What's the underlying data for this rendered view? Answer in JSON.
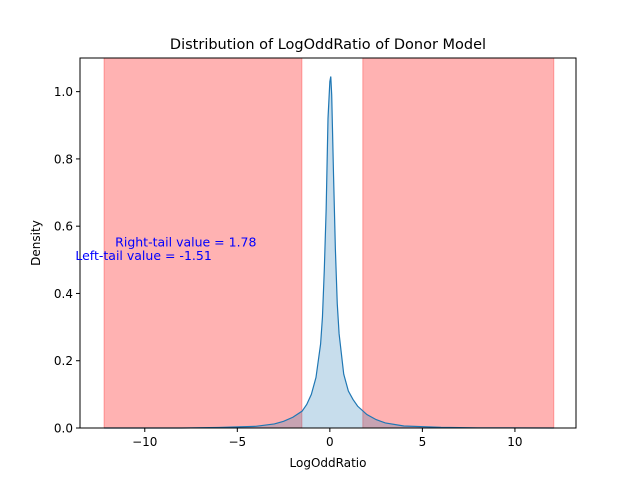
{
  "chart_data": {
    "type": "area",
    "title": "Distribution of LogOddRatio of Donor Model",
    "xlabel": "LogOddRatio",
    "ylabel": "Density",
    "xlim": [
      -13.5,
      13.3
    ],
    "ylim": [
      0,
      1.1
    ],
    "xticks": [
      -10,
      -5,
      0,
      5,
      10
    ],
    "xtick_labels": [
      "−10",
      "−5",
      "0",
      "5",
      "10"
    ],
    "yticks": [
      0.0,
      0.2,
      0.4,
      0.6,
      0.8,
      1.0
    ],
    "ytick_labels": [
      "0.0",
      "0.2",
      "0.4",
      "0.6",
      "0.8",
      "1.0"
    ],
    "grid": false,
    "shaded_regions": [
      {
        "x_start": -12.2,
        "x_end": -1.51,
        "color": "#ff0000",
        "opacity": 0.3
      },
      {
        "x_start": 1.78,
        "x_end": 12.1,
        "color": "#ff0000",
        "opacity": 0.3
      }
    ],
    "annotations": [
      {
        "text": "Right-tail value = 1.78",
        "x": -11.6,
        "y": 0.54,
        "color": "#0000ff"
      },
      {
        "text": "Left-tail value = -1.51",
        "x": -13.75,
        "y": 0.5,
        "color": "#0000ff"
      }
    ],
    "series": [
      {
        "color": "#1f77b4",
        "fill_color": "#1f77b4",
        "fill_opacity": 0.25,
        "x": [
          -12.2,
          -8,
          -6,
          -4,
          -3,
          -2.5,
          -2,
          -1.5,
          -1.25,
          -1.0,
          -0.75,
          -0.5,
          -0.4,
          -0.3,
          -0.2,
          -0.1,
          0,
          0.05,
          0.1,
          0.2,
          0.3,
          0.4,
          0.5,
          0.75,
          1.0,
          1.25,
          1.5,
          2,
          2.5,
          3,
          4,
          6,
          8,
          12.1
        ],
        "y": [
          0.0,
          0.0,
          0.0015,
          0.005,
          0.012,
          0.02,
          0.032,
          0.05,
          0.07,
          0.1,
          0.15,
          0.25,
          0.33,
          0.47,
          0.65,
          0.92,
          1.03,
          1.045,
          0.99,
          0.75,
          0.53,
          0.37,
          0.28,
          0.16,
          0.11,
          0.085,
          0.065,
          0.04,
          0.025,
          0.015,
          0.006,
          0.002,
          0.0005,
          0.0
        ]
      }
    ]
  }
}
